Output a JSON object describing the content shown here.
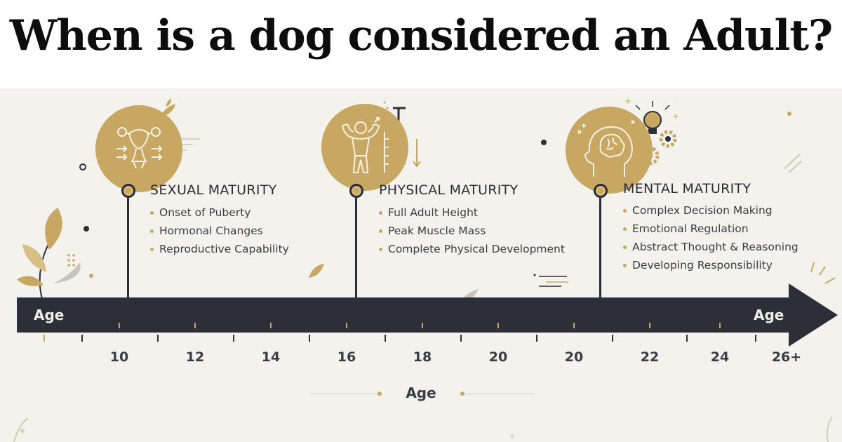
{
  "title": "When is a dog considered an Adult?",
  "stages": [
    {
      "heading": "SEXUAL MATURITY",
      "icon": "reproductive-organs-icon",
      "bullets": [
        "Onset of Puberty",
        "Hormonal Changes",
        "Reproductive Capability"
      ]
    },
    {
      "heading": "PHYSICAL MATURITY",
      "icon": "muscle-figure-icon",
      "bullets": [
        "Full Adult Height",
        "Peak Muscle Mass",
        "Complete Physical Development"
      ]
    },
    {
      "heading": "MENTAL MATURITY",
      "icon": "brain-head-icon",
      "bullets": [
        "Complex Decision Making",
        "Emotional Regulation",
        "Abstract Thought & Reasoning",
        "Developing Responsibility"
      ]
    }
  ],
  "axis": {
    "start_label": "Age",
    "end_label": "Age",
    "title": "Age",
    "ticks": [
      "10",
      "12",
      "14",
      "16",
      "18",
      "20",
      "20",
      "22",
      "24",
      "26+"
    ]
  },
  "colors": {
    "gold": "#c7a761",
    "dark": "#2c2f37",
    "background": "#f4f2ec"
  }
}
